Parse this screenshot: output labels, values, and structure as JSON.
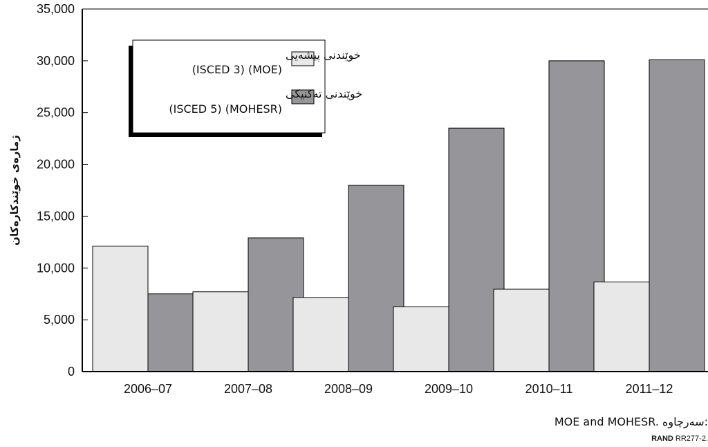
{
  "chart_data": {
    "type": "bar",
    "categories": [
      "2006–07",
      "2007–08",
      "2008–09",
      "2009–10",
      "2010–11",
      "2011–12"
    ],
    "series": [
      {
        "name": "خوێندنی پیشەیی",
        "name_line2": "(ISCED 3) (MOE)",
        "color": "#e8e8e8",
        "values": [
          12100,
          7700,
          7150,
          6250,
          7950,
          8650
        ]
      },
      {
        "name": "خوێندنی تەکنیکی",
        "name_line2": "(ISCED 5) (MOHESR)",
        "color": "#96969a",
        "values": [
          7500,
          12900,
          18000,
          23500,
          30000,
          30100
        ]
      }
    ],
    "ylabel": "ژمارەی خوێندکارەکان",
    "ylim": [
      0,
      35000
    ],
    "yticks": [
      0,
      5000,
      10000,
      15000,
      20000,
      25000,
      30000,
      35000
    ],
    "ytick_labels": [
      "0",
      "5,000",
      "10,000",
      "15,000",
      "20,000",
      "25,000",
      "30,000",
      "35,000"
    ],
    "grid": false,
    "legend_position": "top-left"
  },
  "source": {
    "label": "سەرچاوە:",
    "text": "MOE and MOHESR."
  },
  "figure_id": {
    "brand": "RAND",
    "code": "RR277-2."
  }
}
